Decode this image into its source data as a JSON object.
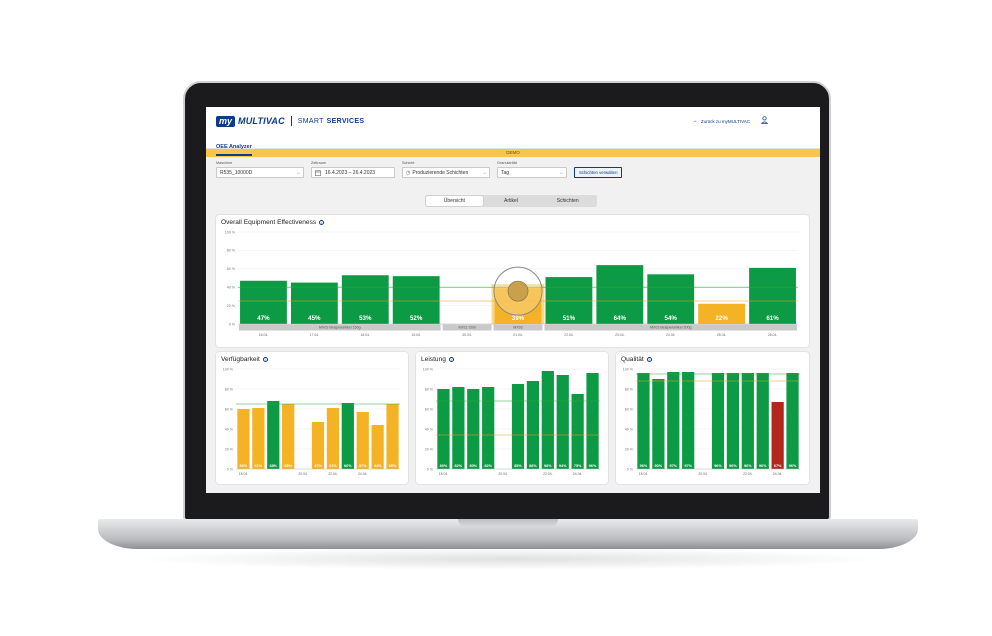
{
  "header": {
    "logo_my": "my",
    "logo_brand": "MULTIVAC",
    "logo_smart": "SMART",
    "logo_services": "SERVICES",
    "back_link": "Zurück zu myMULTIVAC",
    "tab_active": "OEE Analyzer"
  },
  "banner": {
    "text": "DEMO"
  },
  "filters": {
    "machine": {
      "label": "Maschine",
      "value": "R535_10000D"
    },
    "period": {
      "label": "Zeitraum",
      "value": "16.4.2023 – 26.4.2023"
    },
    "shift": {
      "label": "Schicht",
      "value": "Produzierende Schichten"
    },
    "granularity": {
      "label": "Granularität",
      "value": "Tag"
    },
    "manage_button": "Schichten verwalten"
  },
  "view_tabs": [
    "Übersicht",
    "Artikel",
    "Schichten"
  ],
  "colors": {
    "green": "#0d9a44",
    "yellow": "#f4b324",
    "red": "#b3261e",
    "target_line": "#2aa73b",
    "min_line": "#f0a020",
    "brand": "#0b3b8c"
  },
  "chart_data": [
    {
      "type": "bar",
      "title": "Overall Equipment Effectiveness",
      "categories": [
        "16.04.",
        "17.04.",
        "18.04.",
        "19.04.",
        "20.04.",
        "21.04.",
        "22.04.",
        "23.04.",
        "24.04.",
        "25.04.",
        "26.04."
      ],
      "x_tick_labels": [
        "16.04.",
        "17.04.",
        "18.04.",
        "19.04.",
        "20.04.",
        "21.04.",
        "22.04.",
        "23.04.",
        "24.04.",
        "25.04.",
        "26.04."
      ],
      "values": [
        47,
        45,
        53,
        52,
        null,
        39,
        51,
        64,
        54,
        22,
        61
      ],
      "data_labels": [
        "47%",
        "45%",
        "53%",
        "52%",
        "",
        "39%",
        "51%",
        "64%",
        "54%",
        "22%",
        "61%"
      ],
      "bar_status": [
        "green",
        "green",
        "green",
        "green",
        "",
        "yellow",
        "green",
        "green",
        "green",
        "yellow",
        "green"
      ],
      "y_ticks": [
        "100 %",
        "80 %",
        "60 %",
        "40 %",
        "20 %",
        "0 %"
      ],
      "ylim": [
        0,
        100
      ],
      "target": 40,
      "lower_threshold": 25,
      "article_bands": [
        {
          "label": "MX02 Beispielartikel 150g",
          "from": 0,
          "to": 4
        },
        {
          "label": "MX11 Chili",
          "from": 4,
          "to": 5
        },
        {
          "label": "MX03",
          "from": 5,
          "to": 6
        },
        {
          "label": "MX03 Beispielartikel 200g",
          "from": 6,
          "to": 11
        }
      ],
      "highlighted_index": 5
    },
    {
      "type": "bar",
      "title": "Verfügbarkeit",
      "values": [
        60,
        61,
        68,
        65,
        null,
        47,
        61,
        66,
        57,
        44,
        65
      ],
      "data_labels": [
        "60%",
        "61%",
        "68%",
        "65%",
        "",
        "47%",
        "61%",
        "66%",
        "57%",
        "44%",
        "65%"
      ],
      "bar_status": [
        "yellow",
        "yellow",
        "green",
        "yellow",
        "",
        "yellow",
        "yellow",
        "green",
        "yellow",
        "yellow",
        "yellow"
      ],
      "x_tick_labels": [
        "18.04.",
        "",
        "",
        "",
        "20.04.",
        "",
        "22.04.",
        "",
        "24.04.",
        "",
        ""
      ],
      "y_ticks": [
        "100 %",
        "80 %",
        "60 %",
        "40 %",
        "20 %",
        "0 %"
      ],
      "ylim": [
        0,
        100
      ],
      "target": 65
    },
    {
      "type": "bar",
      "title": "Leistung",
      "values": [
        80,
        82,
        80,
        82,
        null,
        85,
        88,
        98,
        94,
        75,
        96
      ],
      "data_labels": [
        "80%",
        "82%",
        "80%",
        "82%",
        "",
        "85%",
        "88%",
        "98%",
        "94%",
        "75%",
        "96%"
      ],
      "bar_status": [
        "green",
        "green",
        "green",
        "green",
        "",
        "green",
        "green",
        "green",
        "green",
        "green",
        "green"
      ],
      "x_tick_labels": [
        "18.04.",
        "",
        "",
        "",
        "20.04.",
        "",
        "",
        "22.04.",
        "",
        "24.04.",
        ""
      ],
      "y_ticks": [
        "100 %",
        "80 %",
        "60 %",
        "40 %",
        "20 %",
        "0 %"
      ],
      "ylim": [
        0,
        100
      ],
      "target": 68,
      "lower_threshold": 34
    },
    {
      "type": "bar",
      "title": "Qualität",
      "values": [
        96,
        90,
        97,
        97,
        null,
        96,
        96,
        96,
        96,
        67,
        96
      ],
      "data_labels": [
        "96%",
        "90%",
        "97%",
        "97%",
        "",
        "96%",
        "96%",
        "96%",
        "96%",
        "67%",
        "96%"
      ],
      "bar_status": [
        "green",
        "green",
        "green",
        "green",
        "",
        "green",
        "green",
        "green",
        "green",
        "red",
        "green"
      ],
      "x_tick_labels": [
        "18.04.",
        "",
        "",
        "",
        "20.04.",
        "",
        "",
        "22.04.",
        "",
        "24.04.",
        ""
      ],
      "y_ticks": [
        "100 %",
        "80 %",
        "60 %",
        "40 %",
        "20 %",
        "0 %"
      ],
      "ylim": [
        0,
        100
      ],
      "target": 95,
      "lower_threshold": 88
    }
  ]
}
